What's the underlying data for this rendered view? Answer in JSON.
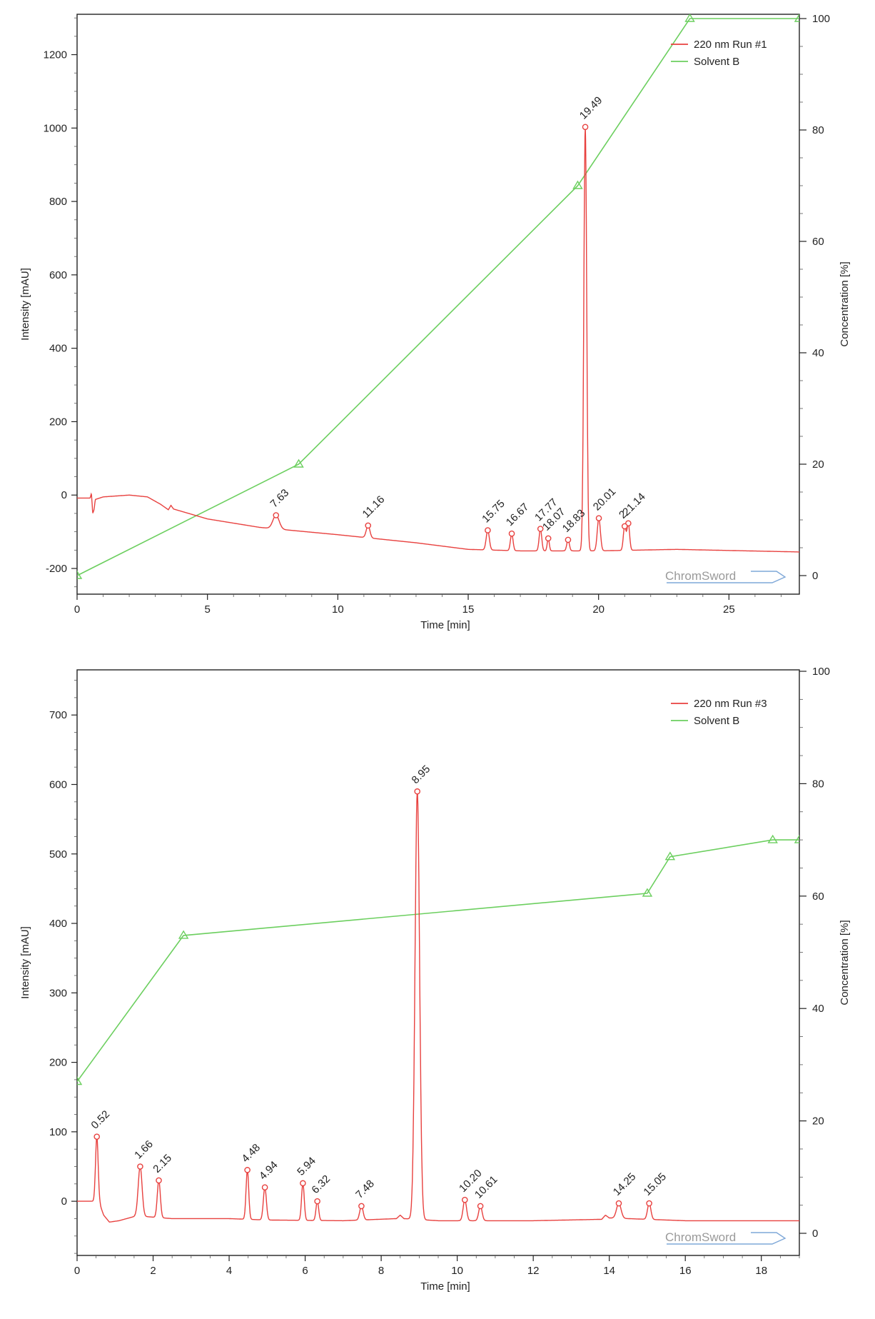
{
  "colors": {
    "signal": "#e8413f",
    "solvent": "#6ccf5f",
    "axis": "#222222",
    "watermark": "#9a9a9a"
  },
  "chart_data": [
    {
      "type": "line",
      "xlabel": "Time [min]",
      "ylabel": "Intensity [mAU]",
      "y2label": "Concentration [%]",
      "xlim": [
        0,
        27.7
      ],
      "ylim": [
        -270,
        1310
      ],
      "y2lim": [
        0,
        100
      ],
      "x_ticks": [
        0,
        5,
        10,
        15,
        20,
        25
      ],
      "y_ticks": [
        -200,
        0,
        200,
        400,
        600,
        800,
        1000,
        1200
      ],
      "y2_ticks": [
        0,
        20,
        40,
        60,
        80,
        100
      ],
      "legend": [
        "220 nm Run #1",
        "Solvent B"
      ],
      "legend_position": "top-right",
      "watermark": "ChromSword",
      "series": [
        {
          "name": "220 nm Run #1",
          "axis": "left",
          "baseline": [
            [
              0,
              -8
            ],
            [
              0.5,
              -8
            ],
            [
              0.55,
              5
            ],
            [
              0.6,
              -50
            ],
            [
              0.65,
              -40
            ],
            [
              0.7,
              -12
            ],
            [
              1,
              -5
            ],
            [
              2,
              0
            ],
            [
              2.7,
              -5
            ],
            [
              3.2,
              -25
            ],
            [
              3.5,
              -40
            ],
            [
              3.6,
              -28
            ],
            [
              3.7,
              -38
            ],
            [
              5,
              -65
            ],
            [
              7,
              -88
            ],
            [
              10,
              -108
            ],
            [
              13,
              -130
            ],
            [
              15,
              -148
            ],
            [
              17,
              -152
            ],
            [
              20,
              -152
            ],
            [
              23,
              -148
            ],
            [
              25,
              -151
            ],
            [
              27.7,
              -155
            ]
          ],
          "peaks": [
            {
              "label": "7.63",
              "x": 7.63,
              "y": -55,
              "w": 0.12
            },
            {
              "label": "11.16",
              "x": 11.16,
              "y": -83,
              "w": 0.07
            },
            {
              "label": "15.75",
              "x": 15.75,
              "y": -96,
              "w": 0.06
            },
            {
              "label": "16.67",
              "x": 16.67,
              "y": -105,
              "w": 0.05
            },
            {
              "label": "17.77",
              "x": 17.77,
              "y": -92,
              "w": 0.05
            },
            {
              "label": "18.07",
              "x": 18.07,
              "y": -118,
              "w": 0.04
            },
            {
              "label": "18.83",
              "x": 18.83,
              "y": -122,
              "w": 0.05
            },
            {
              "label": "19.49",
              "x": 19.49,
              "y": 1003,
              "w": 0.055
            },
            {
              "label": "20.01",
              "x": 20.01,
              "y": -63,
              "w": 0.06
            },
            {
              "label": "21.14",
              "x": 21.14,
              "y": -77,
              "w": 0.05
            },
            {
              "label": "2",
              "x": 21.0,
              "y": -85,
              "w": 0.05
            }
          ]
        },
        {
          "name": "Solvent B",
          "axis": "right",
          "points": [
            [
              0,
              0
            ],
            [
              8.5,
              20
            ],
            [
              19.2,
              70
            ],
            [
              23.5,
              100
            ],
            [
              27.7,
              100
            ]
          ]
        }
      ]
    },
    {
      "type": "line",
      "xlabel": "Time [min]",
      "ylabel": "Intensity [mAU]",
      "y2label": "Concentration [%]",
      "xlim": [
        0,
        19
      ],
      "ylim": [
        -78,
        765
      ],
      "y2lim": [
        0,
        100
      ],
      "x_ticks": [
        0,
        2,
        4,
        6,
        8,
        10,
        12,
        14,
        16,
        18
      ],
      "y_ticks": [
        0,
        100,
        200,
        300,
        400,
        500,
        600,
        700
      ],
      "y2_ticks": [
        0,
        20,
        40,
        60,
        80,
        100
      ],
      "legend": [
        "220 nm Run #3",
        "Solvent B"
      ],
      "legend_position": "top-right",
      "watermark": "ChromSword",
      "series": [
        {
          "name": "220 nm Run #3",
          "axis": "left",
          "baseline": [
            [
              0,
              0
            ],
            [
              0.4,
              0
            ],
            [
              0.6,
              -5
            ],
            [
              0.7,
              -20
            ],
            [
              0.85,
              -30
            ],
            [
              1.1,
              -28
            ],
            [
              1.5,
              -22
            ],
            [
              1.6,
              -18
            ],
            [
              1.8,
              -22
            ],
            [
              2.5,
              -25
            ],
            [
              4,
              -25
            ],
            [
              5,
              -27
            ],
            [
              7,
              -28
            ],
            [
              8.4,
              -25
            ],
            [
              8.5,
              -20
            ],
            [
              8.6,
              -25
            ],
            [
              9.5,
              -28
            ],
            [
              12,
              -28
            ],
            [
              13.8,
              -26
            ],
            [
              13.9,
              -20
            ],
            [
              14.0,
              -24
            ],
            [
              16,
              -28
            ],
            [
              19,
              -28
            ]
          ],
          "peaks": [
            {
              "label": "0.52",
              "x": 0.52,
              "y": 93,
              "w": 0.035
            },
            {
              "label": "1.66",
              "x": 1.66,
              "y": 50,
              "w": 0.05
            },
            {
              "label": "2.15",
              "x": 2.15,
              "y": 30,
              "w": 0.04
            },
            {
              "label": "4.48",
              "x": 4.48,
              "y": 45,
              "w": 0.035
            },
            {
              "label": "4.94",
              "x": 4.94,
              "y": 20,
              "w": 0.04
            },
            {
              "label": "5.94",
              "x": 5.94,
              "y": 26,
              "w": 0.035
            },
            {
              "label": "6.32",
              "x": 6.32,
              "y": 0,
              "w": 0.035
            },
            {
              "label": "7.48",
              "x": 7.48,
              "y": -7,
              "w": 0.045
            },
            {
              "label": "8.95",
              "x": 8.95,
              "y": 590,
              "w": 0.06
            },
            {
              "label": "10.20",
              "x": 10.2,
              "y": 2,
              "w": 0.045
            },
            {
              "label": "10.61",
              "x": 10.61,
              "y": -7,
              "w": 0.045
            },
            {
              "label": "14.25",
              "x": 14.25,
              "y": -3,
              "w": 0.06
            },
            {
              "label": "15.05",
              "x": 15.05,
              "y": -3,
              "w": 0.045
            }
          ]
        },
        {
          "name": "Solvent B",
          "axis": "right",
          "points": [
            [
              0,
              27
            ],
            [
              2.8,
              53
            ],
            [
              15,
              60.5
            ],
            [
              15.6,
              67
            ],
            [
              18.3,
              70
            ],
            [
              19,
              70
            ]
          ]
        }
      ]
    }
  ]
}
